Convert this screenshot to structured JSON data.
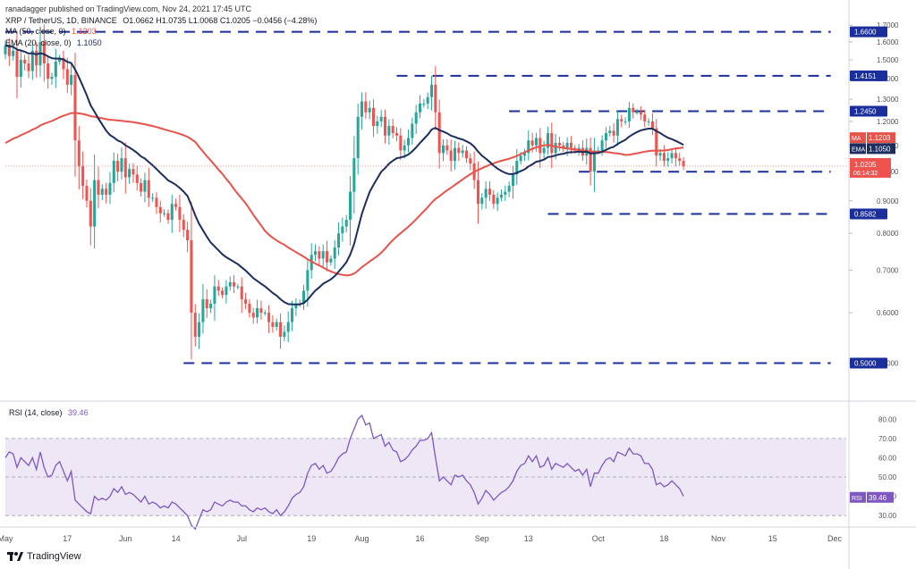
{
  "header": {
    "publisher": "ranadagger published on TradingView.com, Nov 24, 2021 17:45 UTC",
    "symbol": "XRP / TetherUS, 1D, BINANCE",
    "ohlc": "O1.0662  H1.0735  L1.0068  C1.0205  −0.0456 (−4.28%)",
    "ma_label": "MA (50, close, 0)",
    "ma_value": "1.1203",
    "ema_label": "EMA (20, close, 0)",
    "ema_value": "1.1050"
  },
  "rsi_legend": {
    "label": "RSI (14, close)",
    "value": "39.46"
  },
  "brand": "TradingView",
  "colors": {
    "up": "#26a69a",
    "down": "#ef5350",
    "ma": "#e7524a",
    "ema": "#1c2d5e",
    "level": "#1a2f9c",
    "rsi": "#7e57c2",
    "rsi_band": "#ede7f6"
  },
  "chart_data": [
    {
      "type": "candlestick",
      "title": "XRP / TetherUS, 1D, BINANCE",
      "y_scale": "log",
      "ylim": [
        0.44,
        1.78
      ],
      "y_ticks": [
        "1.7000",
        "1.6000",
        "1.5000",
        "1.4000",
        "1.3000",
        "1.2000",
        "1.1000",
        "1.0000",
        "0.9000",
        "0.8000",
        "0.7000",
        "0.6000",
        "0.5000"
      ],
      "x_ticks": [
        "May",
        "17",
        "Jun",
        "14",
        "Jul",
        "19",
        "Aug",
        "16",
        "Sep",
        "13",
        "Oct",
        "18",
        "Nov",
        "15",
        "Dec"
      ],
      "xlim": [
        "2021-05-01",
        "2021-12-04"
      ],
      "series": [
        {
          "name": "MA",
          "value": 1.1203
        },
        {
          "name": "EMA",
          "value": 1.105
        }
      ],
      "horizontal_levels": [
        {
          "value": 1.66,
          "label": "1.6600",
          "from": "2021-05-01",
          "to": "2021-11-30"
        },
        {
          "value": 1.4151,
          "label": "1.4151",
          "from": "2021-08-10",
          "to": "2021-11-30"
        },
        {
          "value": 1.245,
          "label": "1.2450",
          "from": "2021-09-08",
          "to": "2021-11-30"
        },
        {
          "value": 1.0,
          "label": "1.0000",
          "from": "2021-09-26",
          "to": "2021-11-30"
        },
        {
          "value": 0.8582,
          "label": "0.8582",
          "from": "2021-09-18",
          "to": "2021-11-30"
        },
        {
          "value": 0.5,
          "label": "0.5000",
          "from": "2021-06-16",
          "to": "2021-11-30"
        }
      ],
      "last_price": {
        "value": 1.0205,
        "label": "1.0205",
        "countdown": "06:14:32"
      },
      "current_ma": {
        "label": "MA",
        "value": "1.1203"
      },
      "current_ema": {
        "label": "EMA",
        "value": "1.1050"
      },
      "candles": {
        "start": "2021-05-01",
        "close": [
          1.58,
          1.52,
          1.55,
          1.41,
          1.5,
          1.48,
          1.44,
          1.55,
          1.47,
          1.6,
          1.48,
          1.4,
          1.41,
          1.49,
          1.51,
          1.45,
          1.37,
          1.42,
          1.12,
          1.02,
          0.95,
          0.9,
          0.82,
          0.97,
          0.92,
          0.94,
          0.92,
          0.96,
          1.04,
          1.0,
          1.05,
          0.98,
          1.01,
          0.99,
          0.96,
          0.93,
          0.97,
          0.91,
          0.91,
          0.88,
          0.86,
          0.86,
          0.84,
          0.89,
          0.88,
          0.84,
          0.81,
          0.78,
          0.6,
          0.55,
          0.58,
          0.63,
          0.61,
          0.62,
          0.66,
          0.65,
          0.64,
          0.66,
          0.67,
          0.66,
          0.66,
          0.63,
          0.62,
          0.6,
          0.59,
          0.61,
          0.6,
          0.6,
          0.58,
          0.57,
          0.58,
          0.55,
          0.56,
          0.58,
          0.61,
          0.62,
          0.62,
          0.65,
          0.7,
          0.74,
          0.75,
          0.73,
          0.75,
          0.72,
          0.73,
          0.76,
          0.8,
          0.82,
          0.84,
          0.93,
          1.05,
          1.22,
          1.29,
          1.24,
          1.26,
          1.18,
          1.2,
          1.22,
          1.14,
          1.18,
          1.15,
          1.14,
          1.08,
          1.1,
          1.13,
          1.19,
          1.24,
          1.28,
          1.28,
          1.31,
          1.37,
          1.24,
          1.07,
          1.1,
          1.08,
          1.04,
          1.09,
          1.07,
          1.08,
          1.05,
          1.03,
          0.97,
          0.89,
          0.91,
          0.94,
          0.92,
          0.89,
          0.91,
          0.92,
          0.93,
          0.95,
          0.99,
          1.04,
          1.06,
          1.07,
          1.12,
          1.1,
          1.13,
          1.07,
          1.09,
          1.15,
          1.07,
          1.11,
          1.1,
          1.09,
          1.11,
          1.09,
          1.08,
          1.09,
          1.06,
          1.09,
          1.0,
          1.08,
          1.08,
          1.12,
          1.15,
          1.16,
          1.14,
          1.21,
          1.2,
          1.2,
          1.26,
          1.24,
          1.24,
          1.23,
          1.2,
          1.2,
          1.17,
          1.06,
          1.07,
          1.04,
          1.05,
          1.07,
          1.05,
          1.04,
          1.02
        ],
        "first_open": 1.53
      }
    },
    {
      "type": "line",
      "title": "RSI (14, close)",
      "series_name": "RSI",
      "ylim": [
        25,
        88
      ],
      "y_ticks": [
        "80.00",
        "70.00",
        "60.00",
        "50.00",
        "40.00",
        "30.00"
      ],
      "band": [
        30,
        70
      ],
      "midline": 50,
      "last_value": "39.46",
      "start": "2021-05-01",
      "values": [
        60,
        63,
        62,
        55,
        60,
        58,
        56,
        60,
        54,
        63,
        55,
        50,
        51,
        56,
        58,
        53,
        48,
        53,
        38,
        36,
        34,
        32,
        31,
        40,
        38,
        39,
        38,
        40,
        44,
        42,
        45,
        41,
        42,
        41,
        39,
        37,
        40,
        36,
        37,
        36,
        34,
        35,
        34,
        37,
        36,
        34,
        32,
        30,
        25,
        23,
        28,
        33,
        32,
        33,
        37,
        36,
        35,
        37,
        38,
        37,
        37,
        35,
        35,
        33,
        32,
        34,
        33,
        34,
        32,
        31,
        33,
        30,
        32,
        35,
        39,
        41,
        42,
        45,
        52,
        56,
        57,
        54,
        56,
        52,
        53,
        56,
        60,
        62,
        63,
        70,
        75,
        80,
        82,
        77,
        78,
        70,
        71,
        72,
        66,
        68,
        64,
        63,
        58,
        59,
        61,
        64,
        66,
        69,
        69,
        70,
        73,
        60,
        48,
        50,
        48,
        46,
        51,
        50,
        51,
        48,
        46,
        42,
        36,
        39,
        43,
        41,
        38,
        40,
        42,
        43,
        45,
        48,
        53,
        56,
        57,
        61,
        58,
        61,
        55,
        56,
        60,
        54,
        57,
        56,
        55,
        57,
        55,
        53,
        54,
        51,
        54,
        45,
        52,
        52,
        56,
        59,
        60,
        58,
        63,
        62,
        61,
        65,
        62,
        62,
        61,
        57,
        57,
        54,
        46,
        47,
        45,
        46,
        48,
        46,
        44,
        40
      ]
    }
  ]
}
